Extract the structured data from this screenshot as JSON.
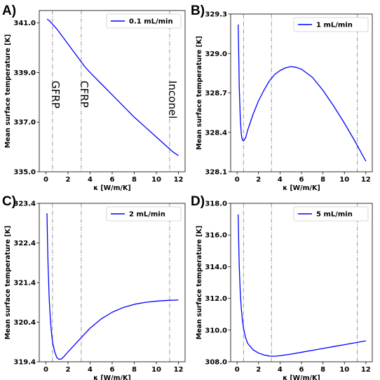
{
  "figure": {
    "title": ""
  },
  "colors": {
    "line": "#0000ff",
    "marker": "#999999",
    "axis": "#000000"
  },
  "chart_data": [
    {
      "panel": "A)",
      "type": "line",
      "xlabel": "κ [W/m/K]",
      "ylabel": "Mean surface temperature [K]",
      "xlim": [
        -0.6,
        12.6
      ],
      "ylim": [
        335.0,
        341.5
      ],
      "xticks": [
        0,
        2,
        4,
        6,
        8,
        10,
        12
      ],
      "yticks": [
        335.0,
        337.0,
        339.0,
        341.0
      ],
      "ytick_labels": [
        "335.0",
        "337.0",
        "339.0",
        "341.0"
      ],
      "legend": "top-right",
      "series": [
        {
          "name": "0.1 mL/min",
          "x": [
            0.1,
            0.3,
            0.6,
            1.0,
            1.5,
            2.0,
            2.5,
            3.0,
            3.5,
            4.0,
            5.0,
            6.0,
            7.0,
            8.0,
            9.0,
            10.0,
            11.0,
            11.5,
            12.0
          ],
          "y": [
            341.15,
            341.1,
            340.95,
            340.75,
            340.45,
            340.15,
            339.85,
            339.55,
            339.25,
            339.0,
            338.55,
            338.1,
            337.65,
            337.2,
            336.8,
            336.4,
            336.0,
            335.8,
            335.65
          ]
        }
      ],
      "markers": {
        "x": [
          0.6,
          3.2,
          11.2
        ],
        "labels": [
          "GFRP",
          "CFRP",
          "Inconel"
        ]
      }
    },
    {
      "panel": "B)",
      "type": "line",
      "xlabel": "κ [W/m/K]",
      "ylabel": "Mean surface temperature [K]",
      "xlim": [
        -0.6,
        12.6
      ],
      "ylim": [
        328.1,
        329.3
      ],
      "xticks": [
        0,
        2,
        4,
        6,
        8,
        10,
        12
      ],
      "yticks": [
        328.1,
        328.4,
        328.7,
        329.0,
        329.3
      ],
      "ytick_labels": [
        "328.1",
        "328.4",
        "328.7",
        "329.0",
        "329.3"
      ],
      "legend": "top-right",
      "series": [
        {
          "name": "1 mL/min",
          "x": [
            0.1,
            0.15,
            0.2,
            0.3,
            0.4,
            0.5,
            0.6,
            0.8,
            1.0,
            1.5,
            2.0,
            2.5,
            3.0,
            3.5,
            4.0,
            4.5,
            5.0,
            5.5,
            6.0,
            7.0,
            8.0,
            9.0,
            10.0,
            11.0,
            12.0
          ],
          "y": [
            329.22,
            329.0,
            328.75,
            328.5,
            328.38,
            328.34,
            328.335,
            328.36,
            328.42,
            328.54,
            328.64,
            328.72,
            328.79,
            328.84,
            328.87,
            328.89,
            328.9,
            328.895,
            328.88,
            328.82,
            328.72,
            328.6,
            328.47,
            328.33,
            328.18
          ]
        }
      ],
      "markers": {
        "x": [
          0.6,
          3.2,
          11.2
        ],
        "labels": []
      }
    },
    {
      "panel": "C)",
      "type": "line",
      "xlabel": "κ [W/m/K]",
      "ylabel": "Mean surface temperature [K]",
      "xlim": [
        -0.6,
        12.6
      ],
      "ylim": [
        319.4,
        323.4
      ],
      "xticks": [
        0,
        2,
        4,
        6,
        8,
        10,
        12
      ],
      "yticks": [
        319.4,
        320.4,
        321.4,
        322.4,
        323.4
      ],
      "ytick_labels": [
        "319.4",
        "320.4",
        "321.4",
        "322.4",
        "323.4"
      ],
      "legend": "top-right",
      "series": [
        {
          "name": "2 mL/min",
          "x": [
            0.1,
            0.15,
            0.2,
            0.3,
            0.4,
            0.5,
            0.6,
            0.8,
            1.0,
            1.2,
            1.4,
            1.6,
            2.0,
            2.5,
            3.0,
            3.5,
            4.0,
            5.0,
            6.0,
            7.0,
            8.0,
            9.0,
            10.0,
            11.0,
            12.0
          ],
          "y": [
            323.15,
            322.4,
            321.8,
            321.0,
            320.5,
            320.15,
            319.9,
            319.65,
            319.5,
            319.46,
            319.47,
            319.52,
            319.65,
            319.8,
            319.95,
            320.1,
            320.25,
            320.48,
            320.65,
            320.77,
            320.85,
            320.9,
            320.93,
            320.95,
            320.96
          ]
        }
      ],
      "markers": {
        "x": [
          0.6,
          3.2,
          11.2
        ],
        "labels": []
      }
    },
    {
      "panel": "D)",
      "type": "line",
      "xlabel": "κ [W/m/K]",
      "ylabel": "Mean surface temperature [K]",
      "xlim": [
        -0.6,
        12.6
      ],
      "ylim": [
        308.0,
        318.0
      ],
      "xticks": [
        0,
        2,
        4,
        6,
        8,
        10,
        12
      ],
      "yticks": [
        308.0,
        310.0,
        312.0,
        314.0,
        316.0,
        318.0
      ],
      "ytick_labels": [
        "308.0",
        "310.0",
        "312.0",
        "314.0",
        "316.0",
        "318.0"
      ],
      "legend": "top-right",
      "series": [
        {
          "name": "5 mL/min",
          "x": [
            0.1,
            0.15,
            0.2,
            0.3,
            0.4,
            0.5,
            0.6,
            0.8,
            1.0,
            1.5,
            2.0,
            2.5,
            3.0,
            3.5,
            4.0,
            5.0,
            6.0,
            7.0,
            8.0,
            9.0,
            10.0,
            11.0,
            12.0
          ],
          "y": [
            317.3,
            315.5,
            314.0,
            312.3,
            311.3,
            310.6,
            310.1,
            309.5,
            309.15,
            308.75,
            308.55,
            308.43,
            308.36,
            308.35,
            308.38,
            308.48,
            308.6,
            308.72,
            308.84,
            308.96,
            309.08,
            309.2,
            309.32
          ]
        }
      ],
      "markers": {
        "x": [
          0.6,
          3.2,
          11.2
        ],
        "labels": []
      }
    }
  ]
}
